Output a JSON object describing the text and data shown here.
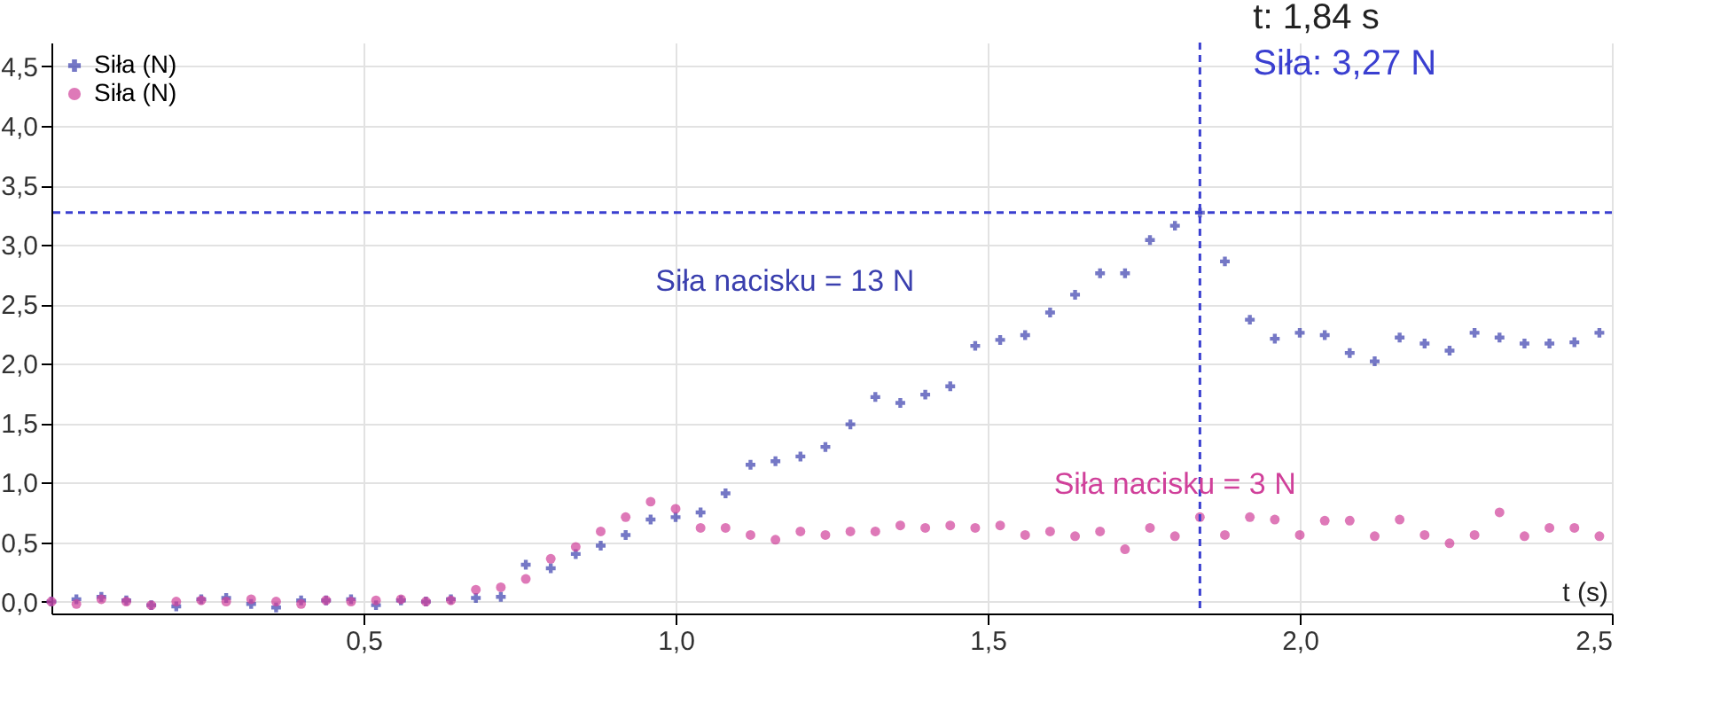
{
  "chart_data": {
    "type": "scatter",
    "xlabel": "t (s)",
    "xlim": [
      0,
      2.5
    ],
    "ylim": [
      -0.1,
      4.7
    ],
    "xticks": [
      {
        "value": 0.5,
        "label": "0,5"
      },
      {
        "value": 1.0,
        "label": "1,0"
      },
      {
        "value": 1.5,
        "label": "1,5"
      },
      {
        "value": 2.0,
        "label": "2,0"
      },
      {
        "value": 2.5,
        "label": "2,5"
      }
    ],
    "yticks": [
      {
        "value": 0,
        "label": "0,0"
      },
      {
        "value": 0.5,
        "label": "0,5"
      },
      {
        "value": 1.0,
        "label": "1,0"
      },
      {
        "value": 1.5,
        "label": "1,5"
      },
      {
        "value": 2.0,
        "label": "2,0"
      },
      {
        "value": 2.5,
        "label": "2,5"
      },
      {
        "value": 3.0,
        "label": "3,0"
      },
      {
        "value": 3.5,
        "label": "3,5"
      },
      {
        "value": 4.0,
        "label": "4,0"
      },
      {
        "value": 4.5,
        "label": "4,5"
      }
    ],
    "grid": true,
    "legend": "top left",
    "x": [
      0,
      0.04,
      0.08,
      0.12,
      0.16,
      0.2,
      0.24,
      0.28,
      0.32,
      0.36,
      0.4,
      0.44,
      0.48,
      0.52,
      0.56,
      0.6,
      0.64,
      0.68,
      0.72,
      0.76,
      0.8,
      0.84,
      0.88,
      0.92,
      0.96,
      1.0,
      1.04,
      1.08,
      1.12,
      1.16,
      1.2,
      1.24,
      1.28,
      1.32,
      1.36,
      1.4,
      1.44,
      1.48,
      1.52,
      1.56,
      1.6,
      1.64,
      1.68,
      1.72,
      1.76,
      1.8,
      1.84,
      1.88,
      1.92,
      1.96,
      2.0,
      2.04,
      2.08,
      2.12,
      2.16,
      2.2,
      2.24,
      2.28,
      2.32,
      2.36,
      2.4,
      2.44,
      2.48
    ],
    "series": [
      {
        "name": "Siła (N)",
        "color": "#3a3fae",
        "marker": "cross",
        "values": [
          0,
          0.02,
          0.04,
          0.01,
          -0.03,
          -0.04,
          0.02,
          0.03,
          -0.02,
          -0.05,
          0.01,
          0.01,
          0.02,
          -0.03,
          0.01,
          0.0,
          0.02,
          0.03,
          0.04,
          0.31,
          0.28,
          0.4,
          0.47,
          0.56,
          0.69,
          0.71,
          0.75,
          0.91,
          1.15,
          1.18,
          1.22,
          1.3,
          1.49,
          1.72,
          1.67,
          1.74,
          1.81,
          2.15,
          2.2,
          2.24,
          2.43,
          2.58,
          2.76,
          2.76,
          3.04,
          3.16,
          3.27,
          2.86,
          2.37,
          2.21,
          2.26,
          2.24,
          2.09,
          2.02,
          2.22,
          2.17,
          2.11,
          2.26,
          2.22,
          2.17,
          2.17,
          2.18,
          2.26
        ]
      },
      {
        "name": "Siła (N)",
        "color": "#d0409a",
        "marker": "circle",
        "values": [
          0,
          -0.02,
          0.02,
          0,
          -0.03,
          0,
          0.01,
          0,
          0.02,
          0,
          -0.02,
          0.01,
          0,
          0.01,
          0.02,
          0,
          0.01,
          0.1,
          0.12,
          0.19,
          0.36,
          0.46,
          0.59,
          0.71,
          0.84,
          0.78,
          0.62,
          0.62,
          0.56,
          0.52,
          0.59,
          0.56,
          0.59,
          0.59,
          0.64,
          0.62,
          0.64,
          0.62,
          0.64,
          0.56,
          0.59,
          0.55,
          0.59,
          0.44,
          0.62,
          0.55,
          0.71,
          0.56,
          0.71,
          0.69,
          0.56,
          0.68,
          0.68,
          0.55,
          0.69,
          0.56,
          0.49,
          0.56,
          0.75,
          0.55,
          0.62,
          0.62,
          0.55
        ]
      }
    ],
    "ref_lines": [
      {
        "axis": "x",
        "value": 1.84,
        "label": "t: 1,84 s",
        "color": "#3a3fd0",
        "line_style": "dashed"
      },
      {
        "axis": "y",
        "value": 3.27,
        "label": "Siła: 3,27 N",
        "color": "#3a3fd0",
        "line_style": "dashed"
      }
    ],
    "annotations": [
      "Siła nacisku = 13 N",
      "Siła nacisku = 3 N"
    ]
  }
}
